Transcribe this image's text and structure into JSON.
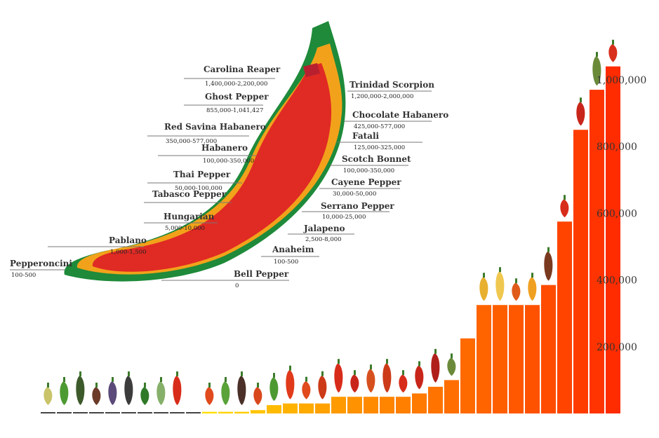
{
  "chart_data": [
    {
      "type": "label-diagram",
      "items": [
        {
          "name": "Carolina Reaper",
          "range": "1,400,000-2,200,000"
        },
        {
          "name": "Ghost Pepper",
          "range": "855,000-1,041,427"
        },
        {
          "name": "Red Savina Habanero",
          "range": "350,000-577,000"
        },
        {
          "name": "Habanero",
          "range": "100,000-350,000"
        },
        {
          "name": "Thai Pepper",
          "range": "50,000-100,000"
        },
        {
          "name": "Tabasco Pepper",
          "range": ""
        },
        {
          "name": "Hungarian",
          "range": "5,000-10,000"
        },
        {
          "name": "Pablano",
          "range": "1,000-1,500"
        },
        {
          "name": "Pepperoncini",
          "range": "100-500"
        },
        {
          "name": "Trinidad Scorpion",
          "range": "1,200,000-2,000,000"
        },
        {
          "name": "Chocolate Habanero",
          "range": "425,000-577,000"
        },
        {
          "name": "Fatali",
          "range": "125,000-325,000"
        },
        {
          "name": "Scotch Bonnet",
          "range": "100,000-350,000"
        },
        {
          "name": "Cayene Pepper",
          "range": "30,000-50,000"
        },
        {
          "name": "Serrano Pepper",
          "range": "10,000-25,000"
        },
        {
          "name": "Jalapeno",
          "range": "2,500-8,000"
        },
        {
          "name": "Anaheim",
          "range": "100-500"
        },
        {
          "name": "Bell Pepper",
          "range": "0"
        }
      ]
    },
    {
      "type": "bar",
      "yticks": [
        {
          "value": 200000,
          "label": "200,000"
        },
        {
          "value": 400000,
          "label": "400,000"
        },
        {
          "value": 600000,
          "label": "600,000"
        },
        {
          "value": 800000,
          "label": "800,000"
        },
        {
          "value": 1000000,
          "label": "1,000,000"
        }
      ],
      "ylim": [
        0,
        1050000
      ],
      "values": [
        0,
        0,
        0,
        0,
        0,
        0,
        0,
        0,
        0,
        0,
        5000,
        5000,
        5000,
        10000,
        25000,
        30000,
        30000,
        30000,
        50000,
        50000,
        50000,
        50000,
        50000,
        60000,
        80000,
        100000,
        225000,
        325000,
        325000,
        325000,
        325000,
        385000,
        575000,
        850000,
        970000,
        1040000
      ],
      "colors": [
        "#444444",
        "#444444",
        "#444444",
        "#444444",
        "#444444",
        "#444444",
        "#444444",
        "#444444",
        "#444444",
        "#444444",
        "#ffdd00",
        "#ffd400",
        "#ffcc00",
        "#ffc400",
        "#ffbb00",
        "#ffb300",
        "#ffaa00",
        "#ffa200",
        "#ff9a00",
        "#ff9200",
        "#ff8a00",
        "#ff8400",
        "#ff7f00",
        "#ff7a00",
        "#ff7400",
        "#ff6e00",
        "#ff6a00",
        "#ff6400",
        "#ff5e00",
        "#ff5800",
        "#ff5200",
        "#ff4c00",
        "#ff4400",
        "#ff3c00",
        "#ff3400",
        "#ff2c00"
      ],
      "pepper_colors": [
        "#c9c46a",
        "#4e9a32",
        "#3d5a2a",
        "#6b3a28",
        "#5b4a7a",
        "#3c3c3c",
        "#2f7a28",
        "#86b06a",
        "#d82c1a",
        "#e04a1c",
        "#5aa23a",
        "#4a3028",
        "#d8481c",
        "#4e9a32",
        "#e03a1a",
        "#e04a1c",
        "#cc3a18",
        "#d82c1a",
        "#c8261a",
        "#d6501e",
        "#cc3a18",
        "#d82c1a",
        "#c8261a",
        "#b0201a",
        "#6a8a3a",
        "#e8b030",
        "#f0c850",
        "#e05a1a",
        "#f0a020",
        "#7a3a20",
        "#d82c1a",
        "#c8261a",
        "#6a8a3a",
        "#d8301c"
      ]
    }
  ]
}
